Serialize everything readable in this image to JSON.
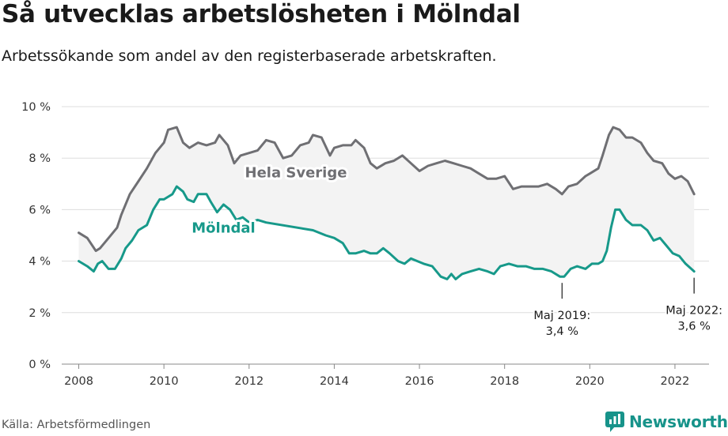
{
  "header": {
    "title": "Så utvecklas arbetslösheten i Mölndal",
    "subtitle": "Arbetssökande som andel av den registerbaserade arbetskraften."
  },
  "footer": {
    "source": "Källa: Arbetsförmedlingen",
    "brand": "Newsworthy",
    "brand_color": "#17938a"
  },
  "chart_data": {
    "type": "line",
    "title": "Så utvecklas arbetslösheten i Mölndal",
    "subtitle": "Arbetssökande som andel av den registerbaserade arbetskraften.",
    "xlabel": "",
    "ylabel": "",
    "xlim": [
      2007.6,
      2022.8
    ],
    "ylim": [
      0,
      10
    ],
    "x_ticks": [
      2008,
      2010,
      2012,
      2014,
      2016,
      2018,
      2020,
      2022
    ],
    "x_tick_labels": [
      "2008",
      "2010",
      "2012",
      "2014",
      "2016",
      "2018",
      "2020",
      "2022"
    ],
    "y_ticks": [
      0,
      2,
      4,
      6,
      8,
      10
    ],
    "y_tick_labels": [
      "0 %",
      "2 %",
      "4 %",
      "6 %",
      "8 %",
      "10 %"
    ],
    "grid": true,
    "area_between_series": true,
    "series": [
      {
        "name": "Hela Sverige",
        "color": "#6f6f73",
        "label_at": [
          2013.1,
          7.25
        ],
        "points": [
          [
            2008.0,
            5.1
          ],
          [
            2008.2,
            4.9
          ],
          [
            2008.4,
            4.4
          ],
          [
            2008.5,
            4.5
          ],
          [
            2008.7,
            4.9
          ],
          [
            2008.9,
            5.3
          ],
          [
            2009.0,
            5.8
          ],
          [
            2009.2,
            6.6
          ],
          [
            2009.4,
            7.1
          ],
          [
            2009.6,
            7.6
          ],
          [
            2009.8,
            8.2
          ],
          [
            2010.0,
            8.6
          ],
          [
            2010.1,
            9.1
          ],
          [
            2010.3,
            9.2
          ],
          [
            2010.45,
            8.6
          ],
          [
            2010.6,
            8.4
          ],
          [
            2010.8,
            8.6
          ],
          [
            2011.0,
            8.5
          ],
          [
            2011.2,
            8.6
          ],
          [
            2011.3,
            8.9
          ],
          [
            2011.5,
            8.5
          ],
          [
            2011.65,
            7.8
          ],
          [
            2011.8,
            8.1
          ],
          [
            2012.0,
            8.2
          ],
          [
            2012.2,
            8.3
          ],
          [
            2012.4,
            8.7
          ],
          [
            2012.6,
            8.6
          ],
          [
            2012.8,
            8.0
          ],
          [
            2013.0,
            8.1
          ],
          [
            2013.2,
            8.5
          ],
          [
            2013.4,
            8.6
          ],
          [
            2013.5,
            8.9
          ],
          [
            2013.7,
            8.8
          ],
          [
            2013.9,
            8.1
          ],
          [
            2014.0,
            8.4
          ],
          [
            2014.2,
            8.5
          ],
          [
            2014.4,
            8.5
          ],
          [
            2014.5,
            8.7
          ],
          [
            2014.7,
            8.4
          ],
          [
            2014.85,
            7.8
          ],
          [
            2015.0,
            7.6
          ],
          [
            2015.2,
            7.8
          ],
          [
            2015.4,
            7.9
          ],
          [
            2015.6,
            8.1
          ],
          [
            2015.8,
            7.8
          ],
          [
            2016.0,
            7.5
          ],
          [
            2016.2,
            7.7
          ],
          [
            2016.4,
            7.8
          ],
          [
            2016.6,
            7.9
          ],
          [
            2016.8,
            7.8
          ],
          [
            2017.0,
            7.7
          ],
          [
            2017.2,
            7.6
          ],
          [
            2017.4,
            7.4
          ],
          [
            2017.6,
            7.2
          ],
          [
            2017.8,
            7.2
          ],
          [
            2018.0,
            7.3
          ],
          [
            2018.2,
            6.8
          ],
          [
            2018.4,
            6.9
          ],
          [
            2018.6,
            6.9
          ],
          [
            2018.8,
            6.9
          ],
          [
            2019.0,
            7.0
          ],
          [
            2019.2,
            6.8
          ],
          [
            2019.35,
            6.6
          ],
          [
            2019.5,
            6.9
          ],
          [
            2019.7,
            7.0
          ],
          [
            2019.9,
            7.3
          ],
          [
            2020.0,
            7.4
          ],
          [
            2020.2,
            7.6
          ],
          [
            2020.3,
            8.1
          ],
          [
            2020.45,
            8.9
          ],
          [
            2020.55,
            9.2
          ],
          [
            2020.7,
            9.1
          ],
          [
            2020.85,
            8.8
          ],
          [
            2021.0,
            8.8
          ],
          [
            2021.2,
            8.6
          ],
          [
            2021.35,
            8.2
          ],
          [
            2021.5,
            7.9
          ],
          [
            2021.7,
            7.8
          ],
          [
            2021.85,
            7.4
          ],
          [
            2022.0,
            7.2
          ],
          [
            2022.15,
            7.3
          ],
          [
            2022.3,
            7.1
          ],
          [
            2022.45,
            6.6
          ]
        ]
      },
      {
        "name": "Mölndal",
        "color": "#17998a",
        "label_at": [
          2011.4,
          5.1
        ],
        "points": [
          [
            2008.0,
            4.0
          ],
          [
            2008.2,
            3.8
          ],
          [
            2008.35,
            3.6
          ],
          [
            2008.45,
            3.9
          ],
          [
            2008.55,
            4.0
          ],
          [
            2008.7,
            3.7
          ],
          [
            2008.85,
            3.7
          ],
          [
            2009.0,
            4.1
          ],
          [
            2009.1,
            4.5
          ],
          [
            2009.25,
            4.8
          ],
          [
            2009.4,
            5.2
          ],
          [
            2009.6,
            5.4
          ],
          [
            2009.75,
            6.0
          ],
          [
            2009.9,
            6.4
          ],
          [
            2010.0,
            6.4
          ],
          [
            2010.1,
            6.5
          ],
          [
            2010.2,
            6.6
          ],
          [
            2010.3,
            6.9
          ],
          [
            2010.45,
            6.7
          ],
          [
            2010.55,
            6.4
          ],
          [
            2010.7,
            6.3
          ],
          [
            2010.8,
            6.6
          ],
          [
            2011.0,
            6.6
          ],
          [
            2011.1,
            6.3
          ],
          [
            2011.25,
            5.9
          ],
          [
            2011.4,
            6.2
          ],
          [
            2011.55,
            6.0
          ],
          [
            2011.7,
            5.6
          ],
          [
            2011.85,
            5.7
          ],
          [
            2012.0,
            5.5
          ],
          [
            2012.2,
            5.6
          ],
          [
            2012.4,
            5.5
          ],
          [
            2013.5,
            5.2
          ],
          [
            2013.8,
            5.0
          ],
          [
            2014.0,
            4.9
          ],
          [
            2014.2,
            4.7
          ],
          [
            2014.35,
            4.3
          ],
          [
            2014.5,
            4.3
          ],
          [
            2014.7,
            4.4
          ],
          [
            2014.85,
            4.3
          ],
          [
            2015.0,
            4.3
          ],
          [
            2015.15,
            4.5
          ],
          [
            2015.3,
            4.3
          ],
          [
            2015.5,
            4.0
          ],
          [
            2015.65,
            3.9
          ],
          [
            2015.8,
            4.1
          ],
          [
            2015.95,
            4.0
          ],
          [
            2016.1,
            3.9
          ],
          [
            2016.3,
            3.8
          ],
          [
            2016.5,
            3.4
          ],
          [
            2016.65,
            3.3
          ],
          [
            2016.75,
            3.5
          ],
          [
            2016.85,
            3.3
          ],
          [
            2017.0,
            3.5
          ],
          [
            2017.2,
            3.6
          ],
          [
            2017.4,
            3.7
          ],
          [
            2017.6,
            3.6
          ],
          [
            2017.75,
            3.5
          ],
          [
            2017.9,
            3.8
          ],
          [
            2018.1,
            3.9
          ],
          [
            2018.3,
            3.8
          ],
          [
            2018.5,
            3.8
          ],
          [
            2018.7,
            3.7
          ],
          [
            2018.9,
            3.7
          ],
          [
            2019.1,
            3.6
          ],
          [
            2019.3,
            3.4
          ],
          [
            2019.4,
            3.4
          ],
          [
            2019.55,
            3.7
          ],
          [
            2019.7,
            3.8
          ],
          [
            2019.9,
            3.7
          ],
          [
            2020.05,
            3.9
          ],
          [
            2020.2,
            3.9
          ],
          [
            2020.3,
            4.0
          ],
          [
            2020.4,
            4.4
          ],
          [
            2020.5,
            5.3
          ],
          [
            2020.6,
            6.0
          ],
          [
            2020.7,
            6.0
          ],
          [
            2020.85,
            5.6
          ],
          [
            2021.0,
            5.4
          ],
          [
            2021.2,
            5.4
          ],
          [
            2021.35,
            5.2
          ],
          [
            2021.5,
            4.8
          ],
          [
            2021.65,
            4.9
          ],
          [
            2021.8,
            4.6
          ],
          [
            2021.95,
            4.3
          ],
          [
            2022.1,
            4.2
          ],
          [
            2022.25,
            3.9
          ],
          [
            2022.45,
            3.6
          ]
        ]
      }
    ],
    "annotations": [
      {
        "id": "min",
        "x": 2019.35,
        "y": 3.4,
        "lines": [
          "Maj 2019:",
          "3,4 %"
        ]
      },
      {
        "id": "last",
        "x": 2022.45,
        "y": 3.6,
        "lines": [
          "Maj 2022:",
          "3,6 %"
        ]
      }
    ]
  }
}
